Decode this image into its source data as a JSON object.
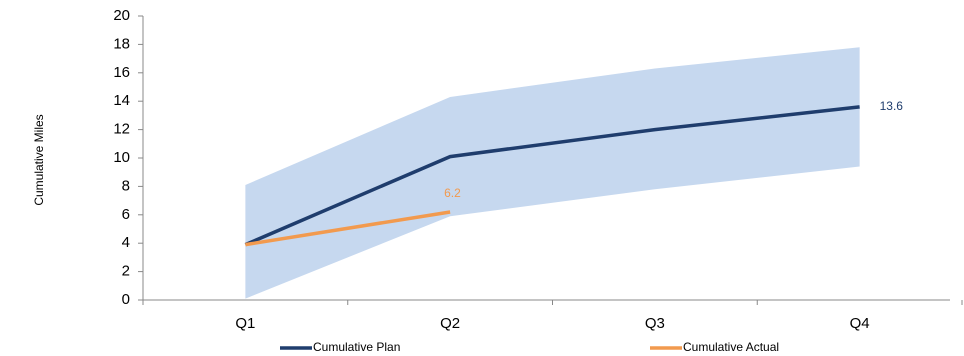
{
  "chart_data": {
    "type": "line",
    "y_label": "Cumulative Miles",
    "categories": [
      "Q1",
      "Q2",
      "Q3",
      "Q4"
    ],
    "band": {
      "color": "#c6d8ef",
      "upper": [
        8.1,
        14.3,
        16.3,
        17.8
      ],
      "lower": [
        0.1,
        5.9,
        7.8,
        9.4
      ]
    },
    "series": [
      {
        "name": "Cumulative Plan",
        "color": "#1f3d6d",
        "values": [
          3.9,
          10.1,
          12.0,
          13.6
        ]
      },
      {
        "name": "Cumulative Actual",
        "color": "#f29a4e",
        "values": [
          3.9,
          6.2,
          null,
          null
        ]
      }
    ],
    "data_labels": "last",
    "ylim": [
      0,
      20
    ],
    "yticks": [
      0,
      2,
      4,
      6,
      8,
      10,
      12,
      14,
      16,
      18,
      20
    ],
    "legend": "bottom"
  }
}
